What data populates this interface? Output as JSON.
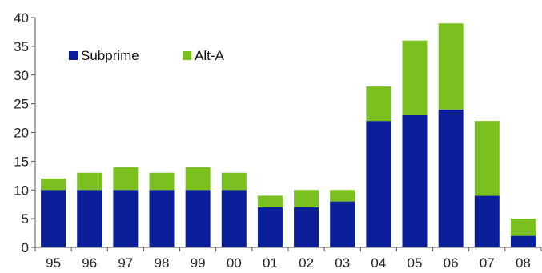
{
  "chart_data": {
    "type": "bar",
    "stacked": true,
    "categories": [
      "95",
      "96",
      "97",
      "98",
      "99",
      "00",
      "01",
      "02",
      "03",
      "04",
      "05",
      "06",
      "07",
      "08"
    ],
    "series": [
      {
        "name": "Subprime",
        "color": "#0a1e9a",
        "values": [
          10,
          10,
          10,
          10,
          10,
          10,
          7,
          7,
          8,
          22,
          23,
          24,
          9,
          2
        ]
      },
      {
        "name": "Alt-A",
        "color": "#7ac11f",
        "values": [
          2,
          3,
          4,
          3,
          4,
          3,
          2,
          3,
          2,
          6,
          13,
          15,
          13,
          3
        ]
      }
    ],
    "ylim": [
      0,
      40
    ],
    "yticks": [
      "0",
      "5",
      "10",
      "15",
      "20",
      "25",
      "30",
      "35",
      "40"
    ],
    "title": "",
    "xlabel": "",
    "ylabel": "",
    "legend_position": "top-left, inside plot area",
    "grid": false
  }
}
